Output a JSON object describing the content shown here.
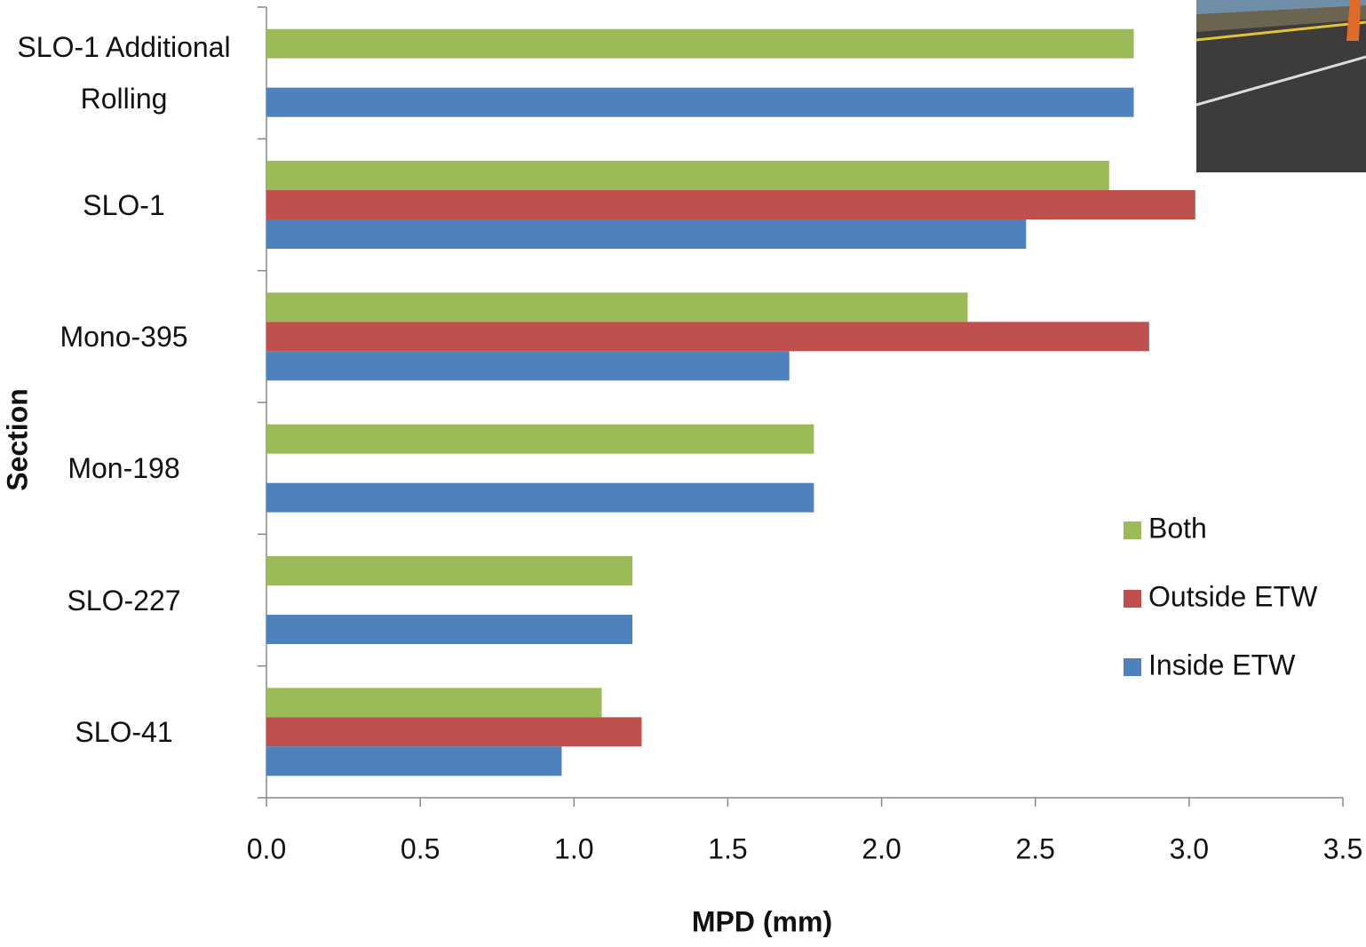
{
  "chart_data": {
    "type": "hbar",
    "x_label": "MPD (mm)",
    "y_label": "Section",
    "categories": [
      "SLO-1 Additional Rolling",
      "SLO-1",
      "Mono-395",
      "Mon-198",
      "SLO-227",
      "SLO-41"
    ],
    "series": [
      {
        "name": "Both",
        "color": "#9bbb59",
        "values": [
          2.82,
          2.74,
          2.28,
          1.78,
          1.19,
          1.09
        ]
      },
      {
        "name": "Outside ETW",
        "color": "#c0504d",
        "values": [
          null,
          3.02,
          2.87,
          null,
          null,
          1.22
        ]
      },
      {
        "name": "Inside ETW",
        "color": "#4f81bd",
        "values": [
          2.82,
          2.47,
          1.7,
          1.78,
          1.19,
          0.96
        ]
      }
    ],
    "xlim": [
      0,
      3.5
    ],
    "xticks": [
      {
        "value": 0,
        "label": "0.0"
      },
      {
        "value": 0.5,
        "label": "0.5"
      },
      {
        "value": 1,
        "label": "1.0"
      },
      {
        "value": 1.5,
        "label": "1.5"
      },
      {
        "value": 2,
        "label": "2.0"
      },
      {
        "value": 2.5,
        "label": "2.5"
      },
      {
        "value": 3,
        "label": "3.0"
      },
      {
        "value": 3.5,
        "label": "3.5"
      }
    ],
    "legend": "right"
  }
}
